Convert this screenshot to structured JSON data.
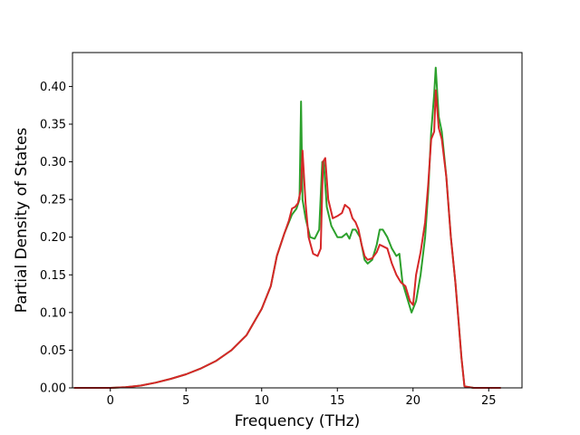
{
  "chart_data": {
    "type": "line",
    "title": "",
    "xlabel": "Frequency (THz)",
    "ylabel": "Partial Density of States",
    "xlim": [
      -2.5,
      27.2
    ],
    "ylim": [
      0.0,
      0.445
    ],
    "xticks": [
      0,
      5,
      10,
      15,
      20,
      25
    ],
    "xtick_labels": [
      "0",
      "5",
      "10",
      "15",
      "20",
      "25"
    ],
    "yticks": [
      0.0,
      0.05,
      0.1,
      0.15,
      0.2,
      0.25,
      0.3,
      0.35,
      0.4
    ],
    "ytick_labels": [
      "0.00",
      "0.05",
      "0.10",
      "0.15",
      "0.20",
      "0.25",
      "0.30",
      "0.35",
      "0.40"
    ],
    "grid": false,
    "legend": "none",
    "series": [
      {
        "color": "#2ca02c",
        "x": [
          -2.4,
          -1,
          0,
          1,
          2,
          3,
          4,
          5,
          6,
          7,
          8,
          9,
          10,
          10.6,
          11,
          11.5,
          12,
          12.3,
          12.5,
          12.6,
          12.7,
          12.9,
          13.2,
          13.5,
          13.8,
          14.0,
          14.1,
          14.3,
          14.6,
          15.0,
          15.3,
          15.6,
          15.8,
          16.0,
          16.2,
          16.5,
          16.8,
          17.0,
          17.3,
          17.6,
          17.8,
          18.0,
          18.3,
          18.6,
          18.9,
          19.1,
          19.3,
          19.6,
          19.9,
          20.2,
          20.5,
          20.8,
          21.0,
          21.2,
          21.4,
          21.5,
          21.7,
          21.9,
          22.2,
          22.5,
          22.8,
          23.0,
          23.2,
          23.4,
          24,
          25,
          25.8
        ],
        "y": [
          0.0,
          0.0,
          0.0,
          0.001,
          0.003,
          0.007,
          0.012,
          0.018,
          0.026,
          0.036,
          0.05,
          0.07,
          0.105,
          0.135,
          0.175,
          0.205,
          0.23,
          0.238,
          0.25,
          0.38,
          0.25,
          0.225,
          0.2,
          0.198,
          0.21,
          0.3,
          0.3,
          0.24,
          0.215,
          0.2,
          0.2,
          0.205,
          0.198,
          0.21,
          0.21,
          0.2,
          0.17,
          0.165,
          0.17,
          0.19,
          0.21,
          0.21,
          0.2,
          0.185,
          0.175,
          0.178,
          0.14,
          0.12,
          0.1,
          0.115,
          0.15,
          0.2,
          0.26,
          0.34,
          0.39,
          0.425,
          0.36,
          0.34,
          0.28,
          0.2,
          0.14,
          0.09,
          0.04,
          0.002,
          0.0,
          0.0,
          0.0
        ]
      },
      {
        "color": "#d62728",
        "x": [
          -2.4,
          -1,
          0,
          1,
          2,
          3,
          4,
          5,
          6,
          7,
          8,
          9,
          10,
          10.6,
          11,
          11.5,
          11.8,
          12.0,
          12.2,
          12.4,
          12.6,
          12.7,
          12.9,
          13.1,
          13.4,
          13.7,
          13.9,
          14.05,
          14.2,
          14.4,
          14.7,
          15.0,
          15.3,
          15.5,
          15.8,
          16.0,
          16.2,
          16.4,
          16.6,
          16.8,
          17.0,
          17.3,
          17.6,
          17.8,
          18.0,
          18.3,
          18.6,
          18.9,
          19.2,
          19.5,
          19.8,
          20.0,
          20.2,
          20.5,
          20.8,
          21.0,
          21.2,
          21.4,
          21.5,
          21.7,
          21.9,
          22.2,
          22.5,
          22.8,
          23.0,
          23.2,
          23.4,
          24,
          25,
          25.8
        ],
        "y": [
          0.0,
          0.0,
          0.0,
          0.001,
          0.003,
          0.007,
          0.012,
          0.018,
          0.026,
          0.036,
          0.05,
          0.07,
          0.105,
          0.135,
          0.175,
          0.205,
          0.222,
          0.238,
          0.24,
          0.245,
          0.265,
          0.315,
          0.245,
          0.2,
          0.178,
          0.175,
          0.185,
          0.3,
          0.305,
          0.25,
          0.225,
          0.228,
          0.232,
          0.243,
          0.238,
          0.225,
          0.22,
          0.21,
          0.19,
          0.175,
          0.17,
          0.172,
          0.18,
          0.19,
          0.188,
          0.185,
          0.165,
          0.15,
          0.14,
          0.135,
          0.115,
          0.11,
          0.15,
          0.18,
          0.22,
          0.27,
          0.33,
          0.34,
          0.395,
          0.345,
          0.33,
          0.28,
          0.2,
          0.14,
          0.09,
          0.04,
          0.002,
          0.0,
          0.0,
          0.0
        ]
      }
    ]
  }
}
